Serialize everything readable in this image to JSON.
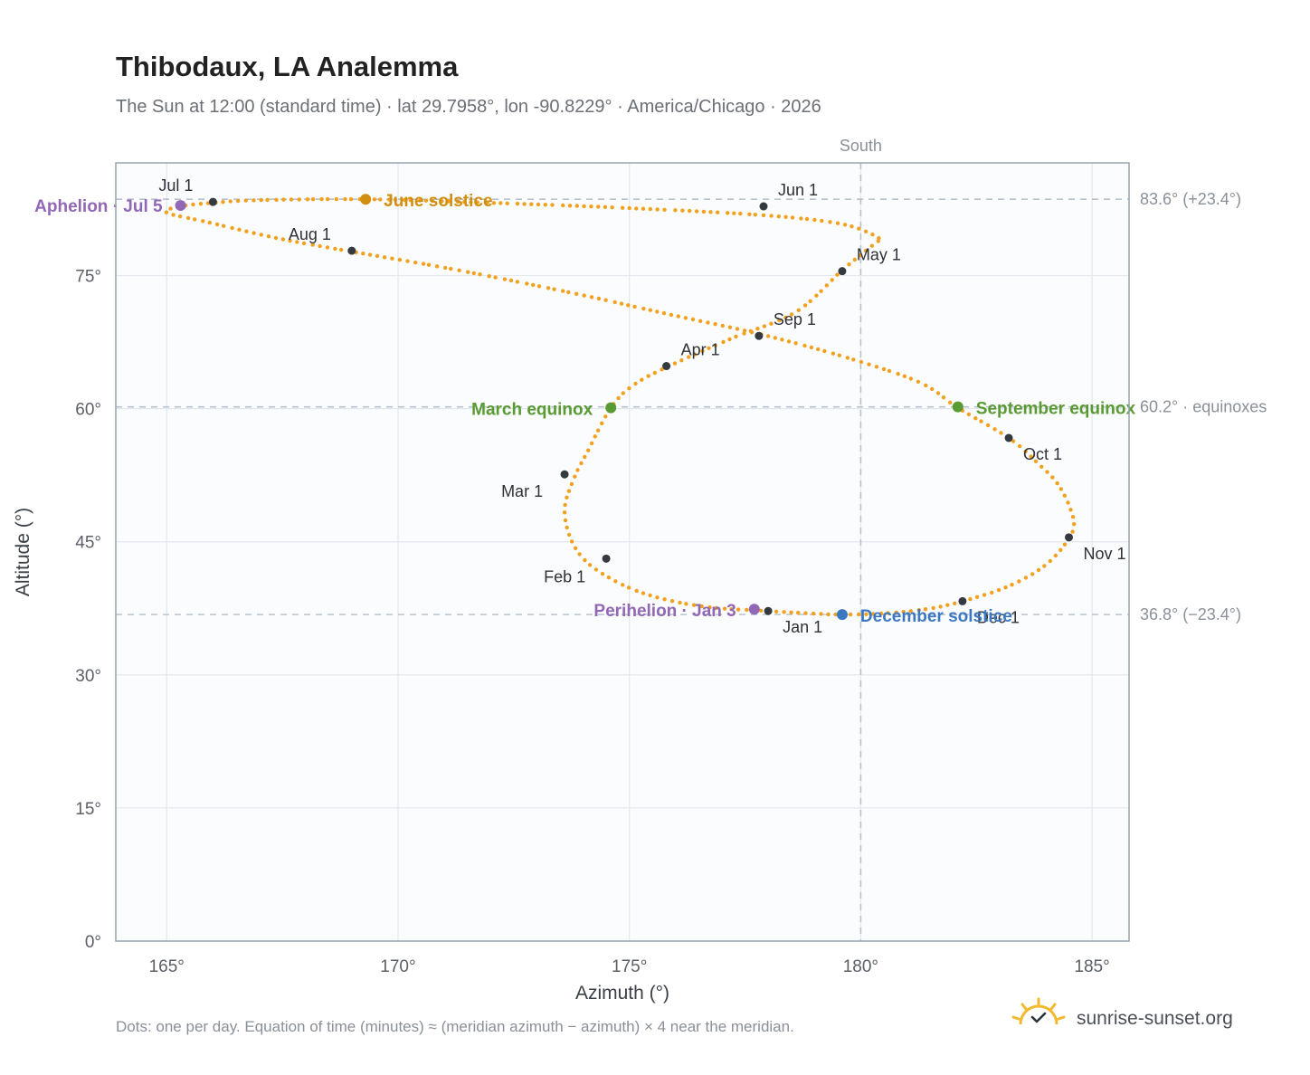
{
  "header": {
    "title": "Thibodaux, LA Analemma",
    "subtitle": "The Sun at 12:00 (standard time) · lat 29.7958°, lon -90.8229° · America/Chicago · 2026"
  },
  "footer": {
    "note": "Dots: one per day. Equation of time (minutes) ≈ (meridian azimuth − azimuth) × 4 near the meridian.",
    "brand": "sunrise-sunset.org"
  },
  "colors": {
    "path": "#f2a11f",
    "month_marker": "#353a40",
    "equinox": "#5a9a32",
    "june_solstice": "#d18f12",
    "december_solstice": "#3c78c2",
    "apsis": "#9168b5",
    "plot_bg": "#fbfcfe",
    "grid": "#e3e8ee",
    "reference_line": "#b8c2cc"
  },
  "chart_data": {
    "type": "scatter",
    "title": "Thibodaux, LA Analemma",
    "xlabel": "Azimuth (°)",
    "ylabel": "Altitude (°)",
    "xlim": [
      163.9,
      185.8
    ],
    "ylim": [
      0,
      87.7
    ],
    "x_ticks": [
      165,
      170,
      175,
      180,
      185
    ],
    "x_tick_labels": [
      "165°",
      "170°",
      "175°",
      "180°",
      "185°"
    ],
    "y_ticks": [
      0,
      15,
      30,
      45,
      60,
      75
    ],
    "y_tick_labels": [
      "0°",
      "15°",
      "30°",
      "45°",
      "60°",
      "75°"
    ],
    "grid": true,
    "meridian": {
      "azimuth": 180,
      "label": "South"
    },
    "reference_lines": [
      {
        "altitude": 83.6,
        "label": "83.6° (+23.4°)"
      },
      {
        "altitude": 60.2,
        "label": "60.2° · equinoxes"
      },
      {
        "altitude": 36.8,
        "label": "36.8° (−23.4°)"
      }
    ],
    "path_points": [
      [
        178.0,
        37.2
      ],
      [
        176.6,
        37.7
      ],
      [
        175.3,
        39.2
      ],
      [
        174.3,
        41.8
      ],
      [
        173.8,
        44.6
      ],
      [
        173.6,
        48.5
      ],
      [
        173.8,
        52.1
      ],
      [
        174.1,
        55.2
      ],
      [
        174.6,
        60.1
      ],
      [
        175.1,
        62.7
      ],
      [
        175.9,
        64.9
      ],
      [
        177.2,
        67.9
      ],
      [
        178.6,
        70.9
      ],
      [
        179.6,
        75.6
      ],
      [
        180.3,
        78.6
      ],
      [
        180.4,
        79.2
      ],
      [
        179.6,
        80.8
      ],
      [
        177.9,
        81.8
      ],
      [
        175.0,
        82.6
      ],
      [
        172.0,
        83.2
      ],
      [
        169.3,
        83.6
      ],
      [
        167.0,
        83.5
      ],
      [
        166.0,
        83.2
      ],
      [
        165.3,
        82.8
      ],
      [
        165.0,
        82.1
      ],
      [
        165.9,
        81.0
      ],
      [
        167.4,
        79.2
      ],
      [
        169.0,
        77.7
      ],
      [
        171.2,
        75.7
      ],
      [
        173.8,
        73.0
      ],
      [
        175.8,
        70.7
      ],
      [
        177.9,
        68.3
      ],
      [
        179.8,
        65.6
      ],
      [
        181.3,
        62.9
      ],
      [
        182.1,
        60.1
      ],
      [
        183.2,
        56.7
      ],
      [
        183.8,
        54.0
      ],
      [
        184.3,
        51.2
      ],
      [
        184.6,
        47.5
      ],
      [
        184.5,
        45.4
      ],
      [
        184.0,
        42.4
      ],
      [
        183.2,
        40.0
      ],
      [
        182.2,
        38.3
      ],
      [
        181.4,
        37.4
      ],
      [
        180.4,
        36.9
      ],
      [
        179.6,
        36.8
      ],
      [
        179.0,
        36.9
      ],
      [
        178.0,
        37.2
      ]
    ],
    "month_markers": [
      {
        "label": "Jan 1",
        "azimuth": 178.0,
        "altitude": 37.2,
        "dx": 16,
        "dy": 24
      },
      {
        "label": "Feb 1",
        "azimuth": 174.5,
        "altitude": 43.1,
        "dx": -69,
        "dy": 26
      },
      {
        "label": "Mar 1",
        "azimuth": 173.6,
        "altitude": 52.6,
        "dx": -70,
        "dy": 25
      },
      {
        "label": "Apr 1",
        "azimuth": 175.8,
        "altitude": 64.8,
        "dx": 16,
        "dy": -12
      },
      {
        "label": "May 1",
        "azimuth": 179.6,
        "altitude": 75.5,
        "dx": 16,
        "dy": -12
      },
      {
        "label": "Jun 1",
        "azimuth": 177.9,
        "altitude": 82.8,
        "dx": 16,
        "dy": -12
      },
      {
        "label": "Jul 1",
        "azimuth": 166.0,
        "altitude": 83.3,
        "dx": -60,
        "dy": -12
      },
      {
        "label": "Aug 1",
        "azimuth": 169.0,
        "altitude": 77.8,
        "dx": -70,
        "dy": -12
      },
      {
        "label": "Sep 1",
        "azimuth": 177.8,
        "altitude": 68.2,
        "dx": 16,
        "dy": -12
      },
      {
        "label": "Oct 1",
        "azimuth": 183.2,
        "altitude": 56.7,
        "dx": 16,
        "dy": 24
      },
      {
        "label": "Nov 1",
        "azimuth": 184.5,
        "altitude": 45.5,
        "dx": 16,
        "dy": 24
      },
      {
        "label": "Dec 1",
        "azimuth": 182.2,
        "altitude": 38.3,
        "dx": 16,
        "dy": 24
      }
    ],
    "events": [
      {
        "label": "June solstice",
        "azimuth": 169.3,
        "altitude": 83.6,
        "color": "#d18f12",
        "anchor": "start",
        "dx": 20,
        "dy": 8
      },
      {
        "label": "December solstice",
        "azimuth": 179.6,
        "altitude": 36.8,
        "color": "#3c78c2",
        "anchor": "start",
        "dx": 20,
        "dy": 8
      },
      {
        "label": "March equinox",
        "azimuth": 174.6,
        "altitude": 60.1,
        "color": "#5a9a32",
        "anchor": "end",
        "dx": -20,
        "dy": 8
      },
      {
        "label": "September equinox",
        "azimuth": 182.1,
        "altitude": 60.2,
        "color": "#5a9a32",
        "anchor": "start",
        "dx": 20,
        "dy": 8
      },
      {
        "label": "Aphelion · Jul 5",
        "azimuth": 165.3,
        "altitude": 82.9,
        "color": "#9168b5",
        "anchor": "end",
        "dx": -20,
        "dy": 7
      },
      {
        "label": "Perihelion · Jan 3",
        "azimuth": 177.7,
        "altitude": 37.4,
        "color": "#9168b5",
        "anchor": "end",
        "dx": -20,
        "dy": 8
      }
    ]
  }
}
